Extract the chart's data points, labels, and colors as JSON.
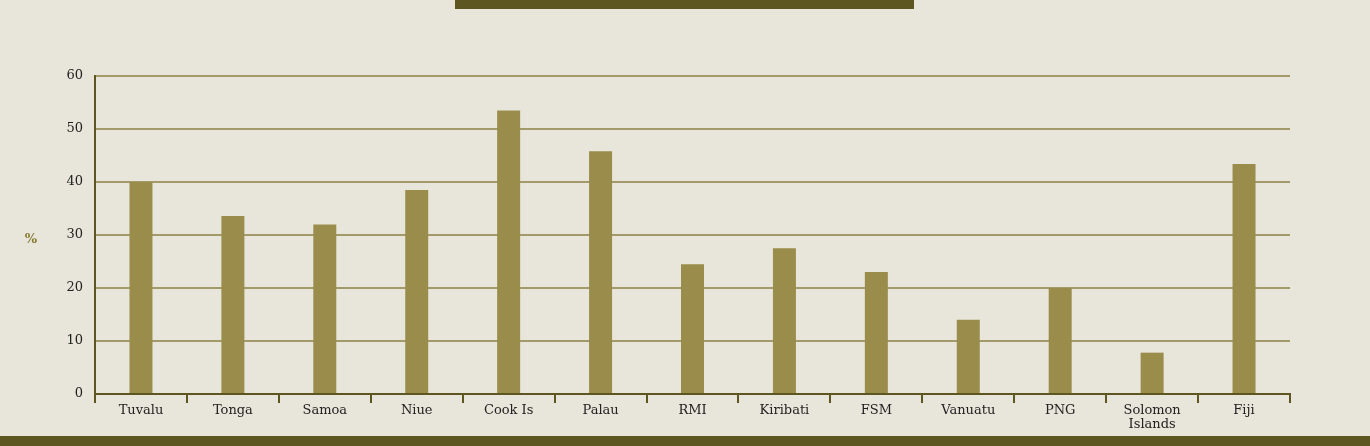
{
  "chart_data": {
    "type": "bar",
    "ylabel": "%",
    "categories": [
      "Tuvalu",
      "Tonga",
      "Samoa",
      "Niue",
      "Cook Is",
      "Palau",
      "RMI",
      "Kiribati",
      "FSM",
      "Vanuatu",
      "PNG",
      "Solomon\nIslands",
      "Fiji"
    ],
    "values": [
      40,
      33.6,
      32,
      38.5,
      53.5,
      45.8,
      24.5,
      27.5,
      23,
      14,
      20,
      7.8,
      43.4
    ],
    "color": "#9a8c4a",
    "ylim": [
      0,
      60
    ],
    "yticks": [
      0,
      10,
      20,
      30,
      40,
      50,
      60
    ],
    "grid": "y",
    "legend": false
  }
}
